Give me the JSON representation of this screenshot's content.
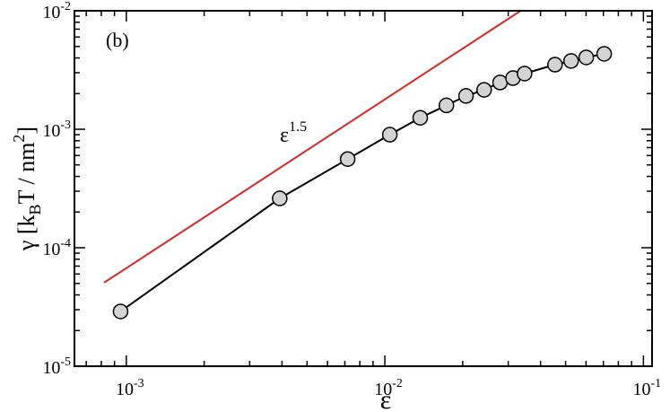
{
  "chart_data": {
    "type": "line",
    "annotations": [
      {
        "text": "(b)"
      },
      {
        "text": [
          "ε",
          "1.5"
        ]
      }
    ],
    "xlabel": "ε",
    "ylabel": [
      "γ [k",
      "B",
      "T / nm",
      "2",
      "]"
    ],
    "xscale": "log",
    "yscale": "log",
    "xlim": [
      0.00063,
      0.108
    ],
    "ylim": [
      1e-05,
      0.01
    ],
    "xticks": [
      {
        "value": 0.001,
        "label": "10",
        "exponent": "-3"
      },
      {
        "value": 0.01,
        "label": "10",
        "exponent": "-2"
      },
      {
        "value": 0.1,
        "label": "10",
        "exponent": "-1"
      }
    ],
    "yticks": [
      {
        "value": 1e-05,
        "label": "10",
        "exponent": "-5"
      },
      {
        "value": 0.0001,
        "label": "10",
        "exponent": "-4"
      },
      {
        "value": 0.001,
        "label": "10",
        "exponent": "-3"
      },
      {
        "value": 0.01,
        "label": "10",
        "exponent": "-2"
      }
    ],
    "minor_ticks": true,
    "series": [
      {
        "color": "#000000",
        "marker_fill": "#d3d3d3",
        "marker": true,
        "x": [
          0.00095,
          0.00392,
          0.00718,
          0.01045,
          0.0137,
          0.0173,
          0.0206,
          0.0242,
          0.0279,
          0.0313,
          0.0347,
          0.0455,
          0.0525,
          0.0601,
          0.0705
        ],
        "values": [
          2.9e-05,
          0.000261,
          0.00056,
          0.0009,
          0.00125,
          0.00159,
          0.00191,
          0.00215,
          0.00248,
          0.0027,
          0.00295,
          0.00351,
          0.00377,
          0.00404,
          0.00433
        ]
      },
      {
        "color": "#d62728",
        "marker": false,
        "x": [
          0.00082,
          0.0335
        ],
        "values": [
          5.07e-05,
          0.01
        ]
      }
    ]
  }
}
